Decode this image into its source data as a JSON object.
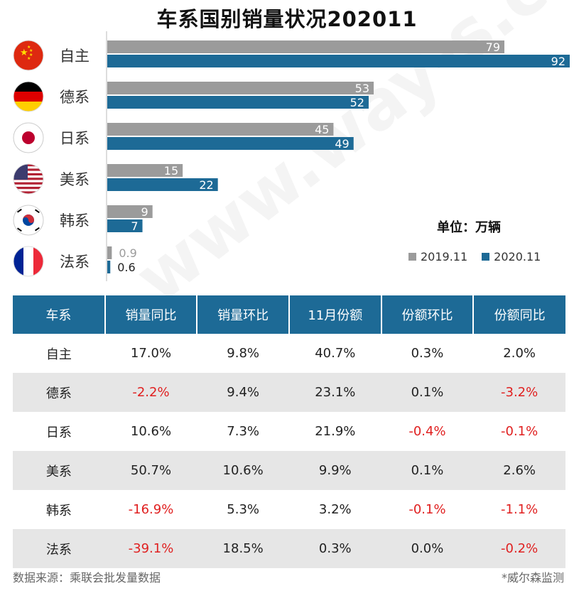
{
  "chart_data": {
    "type": "bar",
    "orientation": "horizontal",
    "title": "车系国别销量状况202011",
    "unit_label": "单位：万辆",
    "categories": [
      "自主",
      "德系",
      "日系",
      "美系",
      "韩系",
      "法系"
    ],
    "series": [
      {
        "name": "2019.11",
        "color": "#9b9b9b",
        "values": [
          79,
          53,
          45,
          15,
          9,
          0.9
        ]
      },
      {
        "name": "2020.11",
        "color": "#1d6a96",
        "values": [
          92,
          52,
          49,
          22,
          7,
          0.6
        ]
      }
    ],
    "xlim": [
      0,
      92
    ]
  },
  "table": {
    "headers": [
      "车系",
      "销量同比",
      "销量环比",
      "11月份额",
      "份额环比",
      "份额同比"
    ],
    "rows": [
      [
        "自主",
        "17.0%",
        "9.8%",
        "40.7%",
        "0.3%",
        "2.0%"
      ],
      [
        "德系",
        "-2.2%",
        "9.4%",
        "23.1%",
        "0.1%",
        "-3.2%"
      ],
      [
        "日系",
        "10.6%",
        "7.3%",
        "21.9%",
        "-0.4%",
        "-0.1%"
      ],
      [
        "美系",
        "50.7%",
        "10.6%",
        "9.9%",
        "0.1%",
        "2.6%"
      ],
      [
        "韩系",
        "-16.9%",
        "5.3%",
        "3.2%",
        "-0.1%",
        "-1.1%"
      ],
      [
        "法系",
        "-39.1%",
        "18.5%",
        "0.3%",
        "0.0%",
        "-0.2%"
      ]
    ]
  },
  "footer": {
    "source": "数据来源：乘联会批发量数据",
    "credit": "*威尔森监测"
  },
  "watermark": "www.way-s.cn",
  "colors": {
    "grey_bar": "#9b9b9b",
    "blue_bar": "#1d6a96",
    "header_bg": "#1d6a96",
    "negative": "#e02020",
    "alt_row": "#e6e6e6"
  }
}
